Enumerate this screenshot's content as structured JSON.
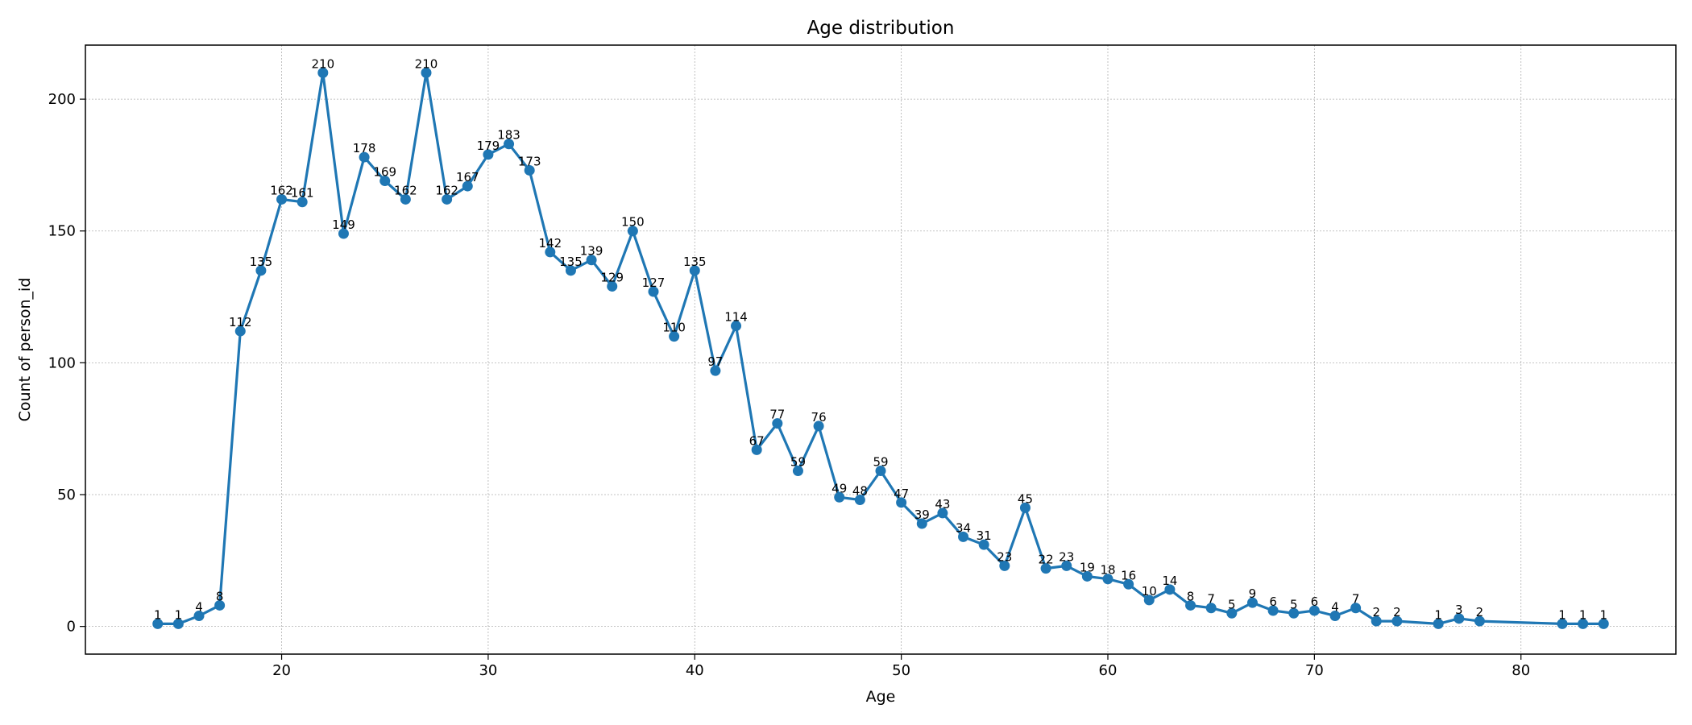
{
  "chart_data": {
    "type": "line",
    "title": "Age distribution",
    "xlabel": "Age",
    "ylabel": "Count of person_id",
    "xlim": [
      10.5,
      87.5
    ],
    "ylim": [
      -10.5,
      220.5
    ],
    "xticks": [
      20,
      30,
      40,
      50,
      60,
      70,
      80
    ],
    "yticks": [
      0,
      50,
      100,
      150,
      200
    ],
    "grid": true,
    "marker": "circle",
    "series_color": "#1f77b4",
    "series": [
      {
        "x": [
          14,
          15,
          16,
          17,
          18,
          19,
          20,
          21,
          22,
          23,
          24,
          25,
          26,
          27,
          28,
          29,
          30,
          31,
          32,
          33,
          34,
          35,
          36,
          37,
          38,
          39,
          40,
          41,
          42,
          43,
          44,
          45,
          46,
          47,
          48,
          49,
          50,
          51,
          52,
          53,
          54,
          55,
          56,
          57,
          58,
          59,
          60,
          61,
          62,
          63,
          64,
          65,
          66,
          67,
          68,
          69,
          70,
          71,
          72,
          73,
          74,
          76,
          77,
          78,
          82,
          83,
          84
        ],
        "values": [
          1,
          1,
          4,
          8,
          112,
          135,
          162,
          161,
          210,
          149,
          178,
          169,
          162,
          210,
          162,
          167,
          179,
          183,
          173,
          142,
          135,
          139,
          129,
          150,
          127,
          110,
          135,
          97,
          114,
          67,
          77,
          59,
          76,
          49,
          48,
          59,
          47,
          39,
          43,
          34,
          31,
          23,
          45,
          22,
          23,
          19,
          18,
          16,
          10,
          14,
          8,
          7,
          5,
          9,
          6,
          5,
          6,
          4,
          7,
          2,
          2,
          1,
          3,
          2,
          1,
          1,
          1
        ]
      }
    ]
  }
}
